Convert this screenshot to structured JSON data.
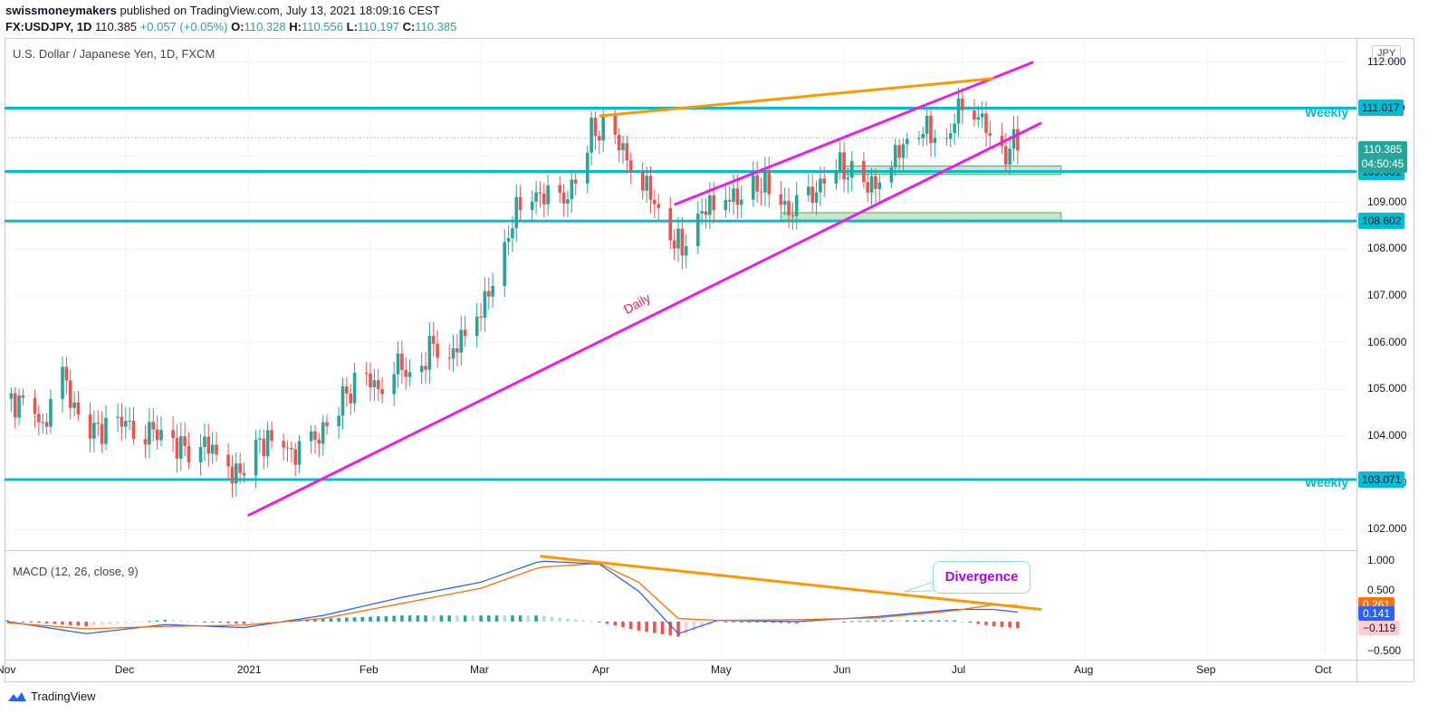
{
  "header": {
    "publisher": "swissmoneymakers",
    "published_text": "published on TradingView.com, July 13, 2021 18:09:16 CEST",
    "symbol": "FX:USDJPY, 1D",
    "last": "110.385",
    "change": "+0.057 (+0.05%)",
    "o_label": "O:",
    "o": "110.328",
    "h_label": "H:",
    "h": "110.556",
    "l_label": "L:",
    "l": "110.197",
    "c_label": "C:",
    "c": "110.385"
  },
  "symbol_title": "U.S. Dollar / Japanese Yen, 1D, FXCM",
  "currency": "JPY",
  "macd_title": "MACD (12, 26, close, 9)",
  "last_price_tag": "110.385",
  "countdown": "04:50:45",
  "levels": [
    {
      "label": "111.017",
      "value": 111.017,
      "note": "Weekly"
    },
    {
      "label": "109.661",
      "value": 109.661,
      "note": ""
    },
    {
      "label": "108.602",
      "value": 108.602,
      "note": ""
    },
    {
      "label": "103.071",
      "value": 103.071,
      "note": "Weekly"
    }
  ],
  "annotations": {
    "daily": "Daily",
    "divergence": "Divergence"
  },
  "macd_tags": [
    {
      "label": "0.261",
      "value": 0.261,
      "color": "#ff6d00"
    },
    {
      "label": "0.141",
      "value": 0.141,
      "color": "#2962ff"
    },
    {
      "label": "−0.119",
      "value": -0.119,
      "color": "#ffcdd2"
    }
  ],
  "chart_data": {
    "type": "candlestick",
    "title": "U.S. Dollar / Japanese Yen, 1D, FXCM",
    "price_ticks": [
      "112.000",
      "111.000",
      "110.000",
      "109.000",
      "108.000",
      "107.000",
      "106.000",
      "105.000",
      "104.000",
      "103.000",
      "102.000"
    ],
    "price_range": [
      101.6,
      112.4
    ],
    "macd_ticks": [
      "1.000",
      "0.500",
      "0.000",
      "−0.500"
    ],
    "macd_range": [
      -0.6,
      1.12
    ],
    "x_ticks": [
      "Nov",
      "Dec",
      "2021",
      "Feb",
      "Mar",
      "Apr",
      "May",
      "Jun",
      "Jul",
      "Aug",
      "Sep",
      "Oct"
    ],
    "x_tick_days": [
      0,
      30,
      61,
      92,
      120,
      151,
      181,
      212,
      242,
      273,
      304,
      334
    ],
    "start_date": "2020-10-26",
    "close_series": [
      [
        0,
        104.8
      ],
      [
        6,
        104.6
      ],
      [
        9,
        104.2
      ],
      [
        14,
        105.3
      ],
      [
        17,
        104.6
      ],
      [
        22,
        104.1
      ],
      [
        28,
        104.3
      ],
      [
        33,
        104.2
      ],
      [
        40,
        104.0
      ],
      [
        45,
        103.7
      ],
      [
        50,
        103.9
      ],
      [
        55,
        103.3
      ],
      [
        60,
        103.2
      ],
      [
        64,
        103.9
      ],
      [
        70,
        103.8
      ],
      [
        73,
        103.6
      ],
      [
        78,
        103.9
      ],
      [
        85,
        104.8
      ],
      [
        90,
        105.3
      ],
      [
        94,
        105.0
      ],
      [
        98,
        105.6
      ],
      [
        103,
        105.2
      ],
      [
        108,
        106.0
      ],
      [
        112,
        105.7
      ],
      [
        117,
        106.3
      ],
      [
        121,
        106.9
      ],
      [
        125,
        107.5
      ],
      [
        128,
        108.7
      ],
      [
        131,
        109.0
      ],
      [
        135,
        109.2
      ],
      [
        140,
        108.9
      ],
      [
        144,
        109.5
      ],
      [
        148,
        110.5
      ],
      [
        152,
        110.6
      ],
      [
        156,
        110.1
      ],
      [
        160,
        109.6
      ],
      [
        164,
        109.0
      ],
      [
        168,
        108.3
      ],
      [
        171,
        108.0
      ],
      [
        174,
        108.7
      ],
      [
        178,
        108.9
      ],
      [
        182,
        109.2
      ],
      [
        186,
        109.0
      ],
      [
        190,
        109.4
      ],
      [
        194,
        109.3
      ],
      [
        198,
        108.8
      ],
      [
        202,
        108.9
      ],
      [
        206,
        109.4
      ],
      [
        210,
        109.8
      ],
      [
        214,
        109.6
      ],
      [
        218,
        109.3
      ],
      [
        222,
        109.6
      ],
      [
        226,
        110.1
      ],
      [
        230,
        110.6
      ],
      [
        234,
        110.5
      ],
      [
        238,
        110.3
      ],
      [
        242,
        111.2
      ],
      [
        245,
        111.0
      ],
      [
        248,
        110.6
      ],
      [
        251,
        109.8
      ],
      [
        254,
        110.2
      ],
      [
        257,
        110.4
      ]
    ],
    "overlays": [
      {
        "name": "Daily",
        "type": "trendline",
        "color": "#e91ee6",
        "from": [
          61,
          102.3
        ],
        "to": [
          262,
          110.7
        ]
      },
      {
        "name": "Upper channel",
        "type": "trendline",
        "color": "#e91ee6",
        "from": [
          169,
          108.95
        ],
        "to": [
          260,
          112.0
        ]
      },
      {
        "name": "Resistance",
        "type": "trendline",
        "color": "#ff9800",
        "from": [
          150,
          110.85
        ],
        "to": [
          250,
          111.65
        ]
      },
      {
        "name": "Zone 1",
        "type": "box",
        "color": "#a5d6a7",
        "x": [
          212,
          267
        ],
        "y": [
          109.6,
          109.78
        ]
      },
      {
        "name": "Zone 2",
        "type": "box",
        "color": "#a5d6a7",
        "x": [
          196,
          267
        ],
        "y": [
          108.62,
          108.78
        ]
      }
    ],
    "macd": {
      "macd_series": [
        [
          0,
          0.0
        ],
        [
          20,
          -0.2
        ],
        [
          40,
          -0.05
        ],
        [
          60,
          -0.1
        ],
        [
          80,
          0.1
        ],
        [
          100,
          0.4
        ],
        [
          120,
          0.65
        ],
        [
          135,
          1.0
        ],
        [
          150,
          0.95
        ],
        [
          160,
          0.5
        ],
        [
          170,
          -0.2
        ],
        [
          180,
          0.02
        ],
        [
          200,
          0.0
        ],
        [
          220,
          0.08
        ],
        [
          240,
          0.2
        ],
        [
          250,
          0.2
        ],
        [
          258,
          0.14
        ]
      ],
      "signal_series": [
        [
          0,
          -0.02
        ],
        [
          20,
          -0.12
        ],
        [
          40,
          -0.08
        ],
        [
          60,
          -0.06
        ],
        [
          80,
          0.05
        ],
        [
          100,
          0.3
        ],
        [
          120,
          0.55
        ],
        [
          135,
          0.9
        ],
        [
          150,
          0.96
        ],
        [
          160,
          0.65
        ],
        [
          170,
          0.05
        ],
        [
          180,
          0.02
        ],
        [
          200,
          0.03
        ],
        [
          220,
          0.06
        ],
        [
          240,
          0.18
        ],
        [
          250,
          0.28
        ],
        [
          258,
          0.26
        ]
      ],
      "divergence_line": {
        "from": [
          135,
          1.08
        ],
        "to": [
          262,
          0.2
        ]
      }
    }
  }
}
